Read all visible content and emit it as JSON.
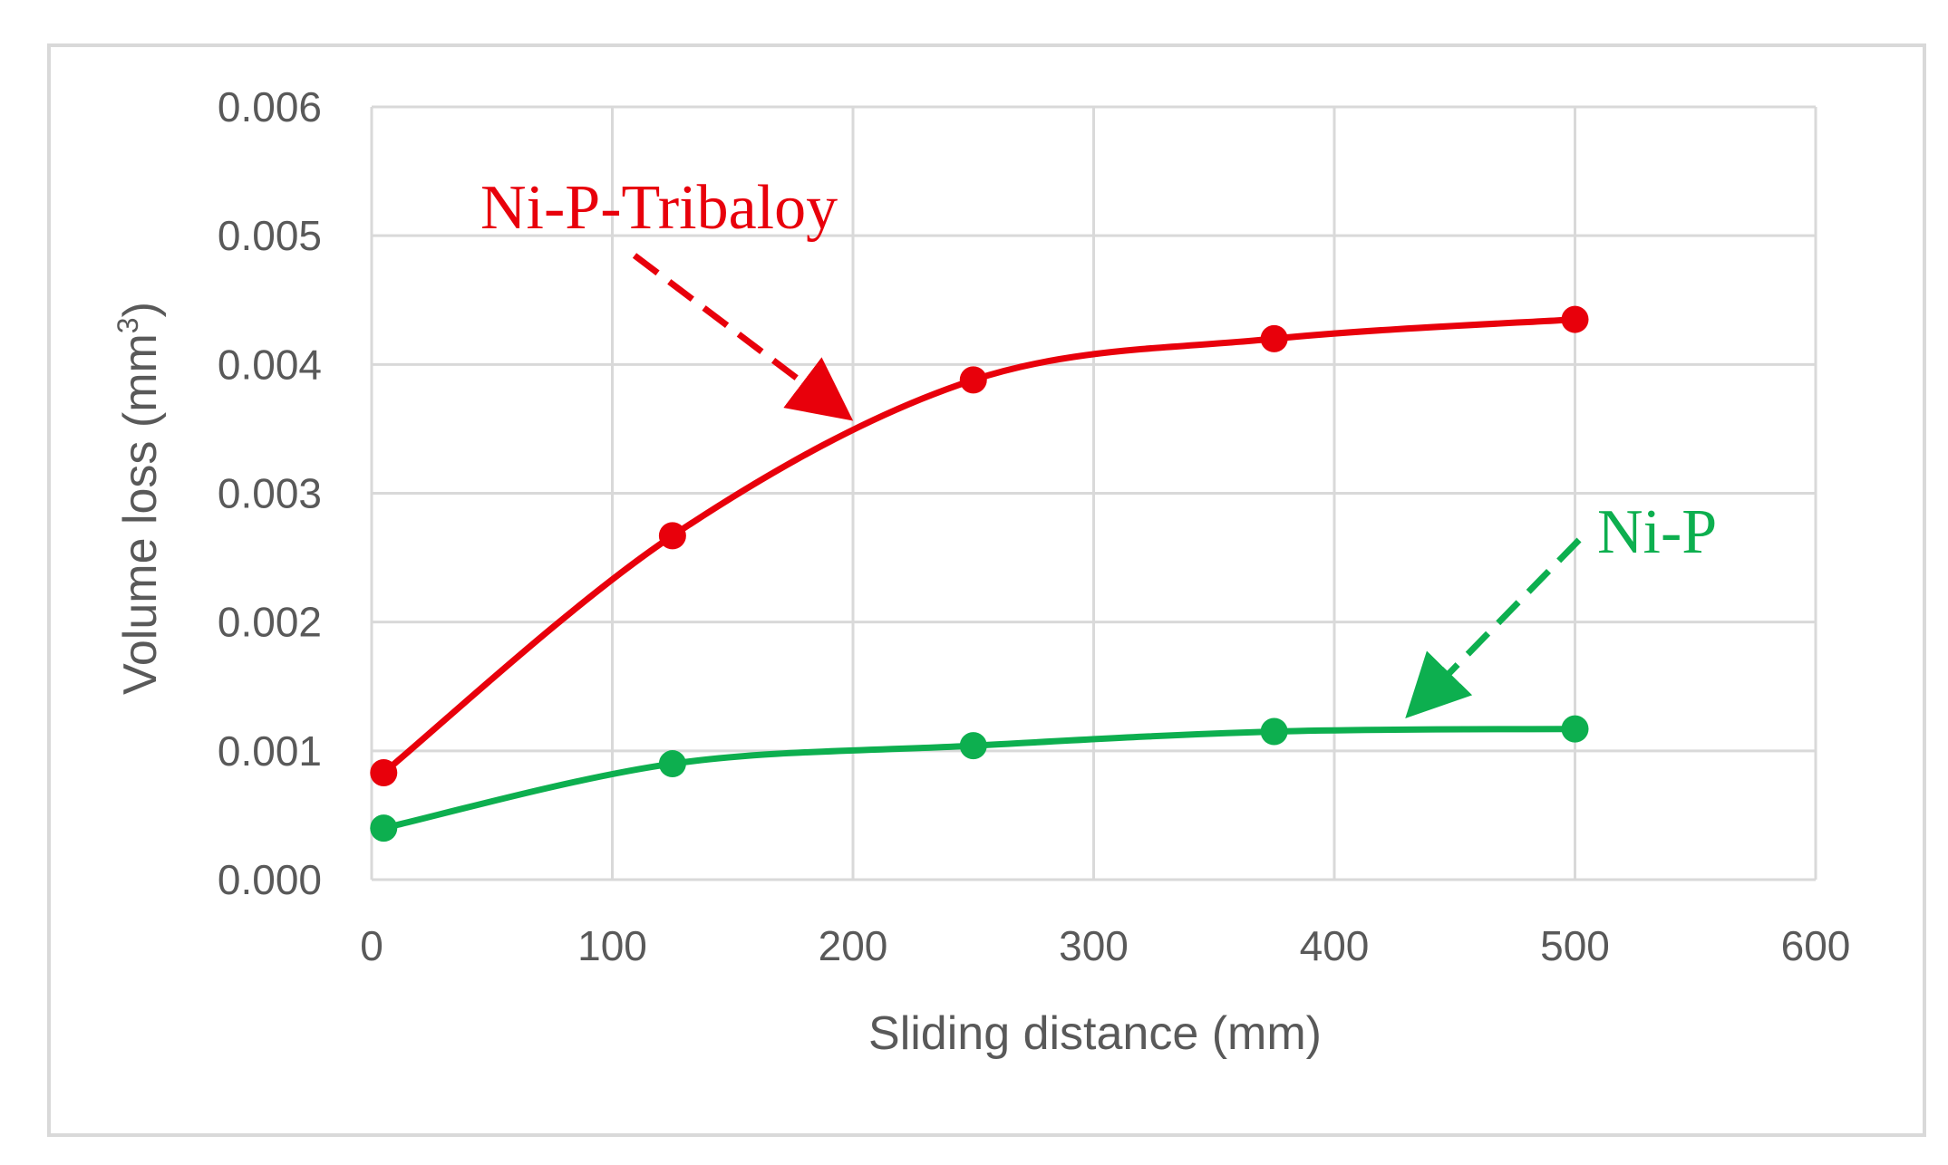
{
  "chart_data": {
    "type": "line",
    "xlabel": "Sliding distance (mm)",
    "ylabel": "Volume loss (mm",
    "ylabel_sup": "3",
    "ylabel_close": ")",
    "xlim": [
      0,
      600
    ],
    "ylim": [
      0,
      0.006
    ],
    "x_ticks": [
      0,
      100,
      200,
      300,
      400,
      500,
      600
    ],
    "x_tick_labels": [
      "0",
      "100",
      "200",
      "300",
      "400",
      "500",
      "600"
    ],
    "y_ticks": [
      0,
      0.001,
      0.002,
      0.003,
      0.004,
      0.005,
      0.006
    ],
    "y_tick_labels": [
      "0.000",
      "0.001",
      "0.002",
      "0.003",
      "0.004",
      "0.005",
      "0.006"
    ],
    "grid": true,
    "legend": "none",
    "series": [
      {
        "name": "Ni-P-Tribaloy",
        "color": "#e8000b",
        "x": [
          5,
          125,
          250,
          375,
          500
        ],
        "y": [
          0.00083,
          0.00267,
          0.00388,
          0.0042,
          0.00435
        ]
      },
      {
        "name": "Ni-P",
        "color": "#0daf4f",
        "x": [
          5,
          125,
          250,
          375,
          500
        ],
        "y": [
          0.0004,
          0.0009,
          0.00104,
          0.00115,
          0.00117
        ]
      }
    ],
    "annotations": [
      {
        "text": "Ni-P-Tribaloy",
        "color": "#e8000b"
      },
      {
        "text": "Ni-P",
        "color": "#0daf4f"
      }
    ]
  }
}
